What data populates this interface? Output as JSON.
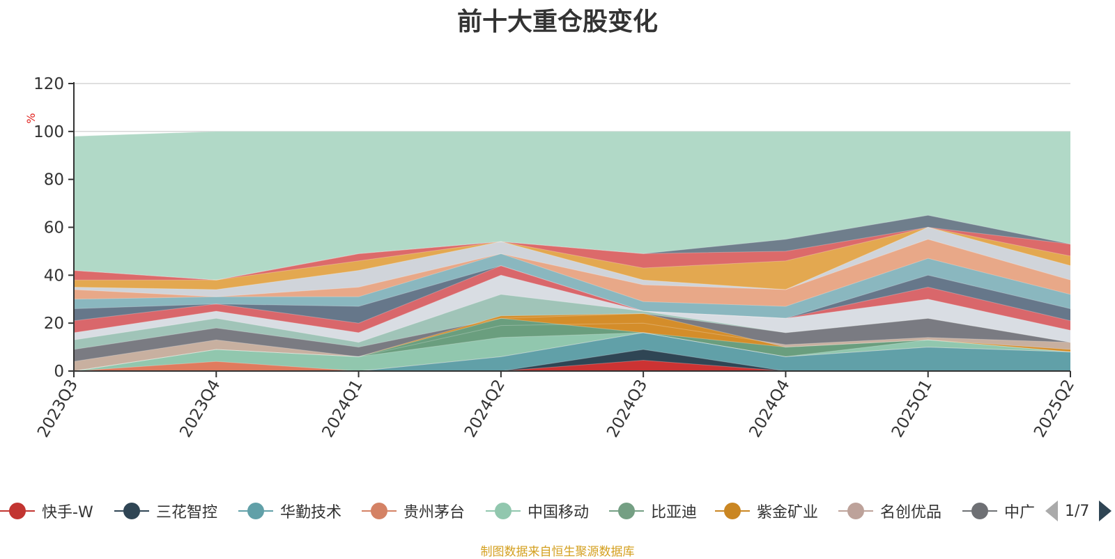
{
  "chart_data": {
    "type": "area",
    "title": "前十大重仓股变化",
    "ylabel": "%",
    "x": [
      "2023Q3",
      "2023Q4",
      "2024Q1",
      "2024Q2",
      "2024Q3",
      "2024Q4",
      "2025Q1",
      "2025Q2"
    ],
    "ylim": [
      0,
      120
    ],
    "yticks": [
      0,
      20,
      40,
      60,
      80,
      100,
      120
    ],
    "grid": true,
    "legend_position": "bottom",
    "legend_page": "1/7",
    "stack_boundaries": [
      {
        "values": [
          0,
          0,
          0,
          0,
          4.5,
          0,
          0,
          0
        ],
        "color": "#cc3333"
      },
      {
        "values": [
          0,
          0,
          0,
          0,
          9,
          0,
          0,
          0
        ],
        "color": "#2f4554"
      },
      {
        "values": [
          0,
          0,
          0,
          6,
          16,
          6,
          10,
          8
        ],
        "color": "#61a0a8"
      },
      {
        "values": [
          0,
          4,
          0,
          6,
          16,
          6,
          10,
          8
        ],
        "color": "#e07b5e"
      },
      {
        "values": [
          0,
          9,
          6,
          14,
          16,
          6,
          13,
          8
        ],
        "color": "#91c7ae"
      },
      {
        "values": [
          0,
          9,
          6,
          22,
          16,
          10,
          13,
          8
        ],
        "color": "#6a9e7e"
      },
      {
        "values": [
          0,
          9,
          6,
          23,
          24,
          10,
          13,
          9
        ],
        "color": "#d48d2a"
      },
      {
        "values": [
          4,
          13,
          6,
          19,
          20,
          11,
          14,
          12
        ],
        "color": "#c8b0a0"
      },
      {
        "values": [
          9,
          18,
          10,
          22,
          24,
          16,
          22,
          12
        ],
        "color": "#7a7b82"
      },
      {
        "values": [
          13,
          22,
          12,
          32,
          25,
          16,
          22,
          12
        ],
        "color": "#a0c4b8"
      },
      {
        "values": [
          16,
          25,
          16,
          40,
          25,
          22,
          30,
          17
        ],
        "color": "#d9dde3"
      },
      {
        "values": [
          21,
          28,
          20,
          44,
          25,
          22,
          35,
          21
        ],
        "color": "#d9676b"
      },
      {
        "values": [
          26,
          28,
          27,
          44,
          25,
          22,
          40,
          26
        ],
        "color": "#66778a"
      },
      {
        "values": [
          30,
          31,
          31,
          49,
          29,
          27,
          47,
          32
        ],
        "color": "#8ab7bf"
      },
      {
        "values": [
          34,
          31,
          35,
          49,
          36,
          34,
          55,
          38
        ],
        "color": "#e8a888"
      },
      {
        "values": [
          35,
          34,
          42,
          54,
          38,
          34,
          60,
          44
        ],
        "color": "#d0d4da"
      },
      {
        "values": [
          38,
          38,
          46,
          54,
          43,
          46,
          60,
          48
        ],
        "color": "#e3a850"
      },
      {
        "values": [
          42,
          38,
          49,
          54,
          49,
          50,
          60,
          53
        ],
        "color": "#dc6a6a"
      },
      {
        "values": [
          42,
          38,
          49,
          54,
          49,
          55,
          65,
          53
        ],
        "color": "#6f7e8c"
      },
      {
        "values": [
          98,
          100,
          100,
          100,
          100,
          100,
          100,
          100
        ],
        "color": "#b1d9c7"
      }
    ],
    "series": [
      {
        "name": "快手-W",
        "color": "#c23531"
      },
      {
        "name": "三花智控",
        "color": "#2f4554"
      },
      {
        "name": "华勤技术",
        "color": "#61a0a8"
      },
      {
        "name": "贵州茅台",
        "color": "#d48265"
      },
      {
        "name": "中国移动",
        "color": "#91c7ae"
      },
      {
        "name": "比亚迪",
        "color": "#749f83"
      },
      {
        "name": "紫金矿业",
        "color": "#ca8622"
      },
      {
        "name": "名创优品",
        "color": "#bda29a"
      },
      {
        "name": "中广",
        "color": "#6e7074"
      }
    ]
  },
  "source_note": "制图数据来自恒生聚源数据库"
}
